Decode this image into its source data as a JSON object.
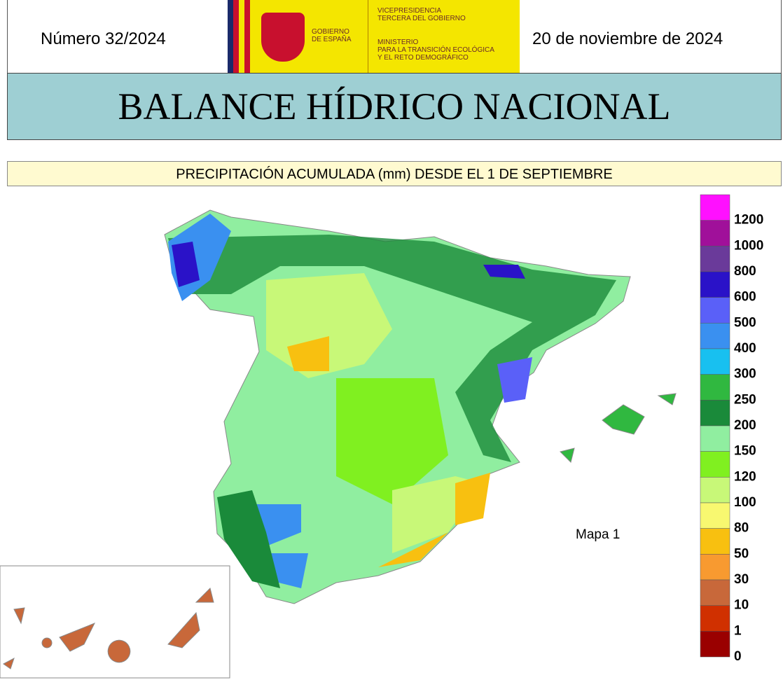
{
  "header": {
    "number": "Número 32/2024",
    "date": "20 de noviembre de 2024",
    "logo": {
      "government": [
        "GOBIERNO",
        "DE ESPAÑA"
      ],
      "vicepresidency": [
        "VICEPRESIDENCIA",
        "TERCERA DEL GOBIERNO"
      ],
      "ministry": [
        "MINISTERIO",
        "PARA LA TRANSICIÓN ECOLÓGICA",
        "Y EL RETO DEMOGRÁFICO"
      ]
    }
  },
  "title": "BALANCE HÍDRICO NACIONAL",
  "map": {
    "subtitle": "PRECIPITACIÓN ACUMULADA (mm) DESDE EL 1 DE SEPTIEMBRE",
    "label": "Mapa 1",
    "legend": [
      {
        "color": "#ff10ff",
        "label": 1200
      },
      {
        "color": "#a0109a",
        "label": 1000
      },
      {
        "color": "#6a3a9a",
        "label": 800
      },
      {
        "color": "#2a12c8",
        "label": 600
      },
      {
        "color": "#5a60f8",
        "label": 500
      },
      {
        "color": "#3a90f0",
        "label": 400
      },
      {
        "color": "#18c0f0",
        "label": 300
      },
      {
        "color": "#30b840",
        "label": 250
      },
      {
        "color": "#1a8a3a",
        "label": 200
      },
      {
        "color": "#90eea0",
        "label": 150
      },
      {
        "color": "#80f020",
        "label": 120
      },
      {
        "color": "#c8f878",
        "label": 100
      },
      {
        "color": "#f8f870",
        "label": 80
      },
      {
        "color": "#f8c010",
        "label": 50
      },
      {
        "color": "#f89a30",
        "label": 30
      },
      {
        "color": "#c8683a",
        "label": 10
      },
      {
        "color": "#d03000",
        "label": 1
      },
      {
        "color": "#9a0000",
        "label": 0
      }
    ]
  }
}
